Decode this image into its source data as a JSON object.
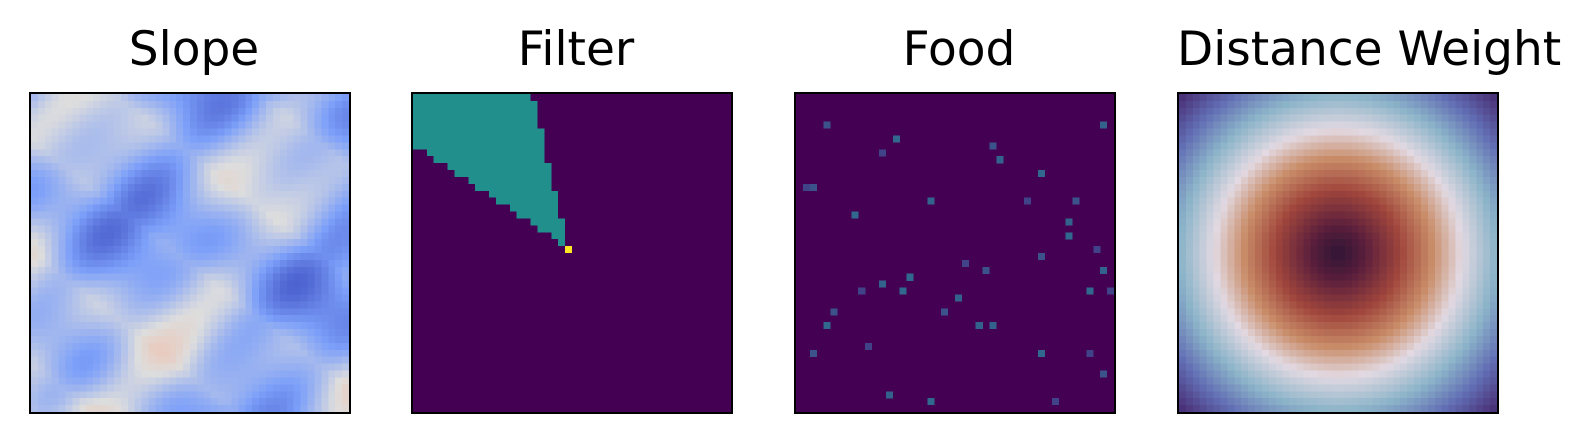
{
  "chart_data": [
    {
      "type": "heatmap",
      "title": "Slope",
      "colormap": "coolwarm",
      "grid": [
        46,
        46
      ],
      "xlabel": "",
      "ylabel": "",
      "ticks": "none",
      "description_values": "terrain slope field, mostly cool (blue) values with warmer patches toward the lower-left"
    },
    {
      "type": "heatmap",
      "title": "Filter",
      "colormap": "viridis",
      "grid": [
        46,
        46
      ],
      "levels": [
        0,
        0.5,
        1
      ],
      "level_colors": [
        "#440154",
        "#21908d",
        "#fde725"
      ],
      "wedge_apex": [
        22,
        22
      ],
      "wedge_angle_deg": [
        103,
        146
      ],
      "xlabel": "",
      "ylabel": "",
      "ticks": "none"
    },
    {
      "type": "heatmap",
      "title": "Food",
      "colormap": "viridis",
      "grid": [
        46,
        46
      ],
      "background_color": "#440154",
      "points": [
        [
          4,
          4
        ],
        [
          44,
          4
        ],
        [
          14,
          6
        ],
        [
          12,
          8
        ],
        [
          28,
          7
        ],
        [
          29,
          9
        ],
        [
          35,
          11
        ],
        [
          1,
          13
        ],
        [
          2,
          13
        ],
        [
          19,
          15
        ],
        [
          8,
          17
        ],
        [
          33,
          15
        ],
        [
          40,
          15
        ],
        [
          39,
          18
        ],
        [
          39,
          20
        ],
        [
          43,
          22
        ],
        [
          35,
          23
        ],
        [
          44,
          25
        ],
        [
          16,
          26
        ],
        [
          24,
          24
        ],
        [
          27,
          25
        ],
        [
          12,
          27
        ],
        [
          15,
          28
        ],
        [
          9,
          28
        ],
        [
          21,
          31
        ],
        [
          23,
          29
        ],
        [
          42,
          28
        ],
        [
          45,
          28
        ],
        [
          5,
          31
        ],
        [
          26,
          33
        ],
        [
          4,
          33
        ],
        [
          10,
          36
        ],
        [
          2,
          37
        ],
        [
          28,
          33
        ],
        [
          35,
          37
        ],
        [
          42,
          37
        ],
        [
          44,
          40
        ],
        [
          13,
          43
        ],
        [
          19,
          44
        ],
        [
          37,
          44
        ],
        [
          44,
          46
        ]
      ],
      "point_colors": [
        "#3b528b",
        "#33638d",
        "#31688e",
        "#404387"
      ],
      "xlabel": "",
      "ylabel": "",
      "ticks": "none"
    },
    {
      "type": "heatmap",
      "title": "Distance Weight",
      "colormap": "twilight",
      "grid": [
        46,
        46
      ],
      "center": [
        23,
        23
      ],
      "xlabel": "",
      "ylabel": "",
      "ticks": "none"
    }
  ]
}
